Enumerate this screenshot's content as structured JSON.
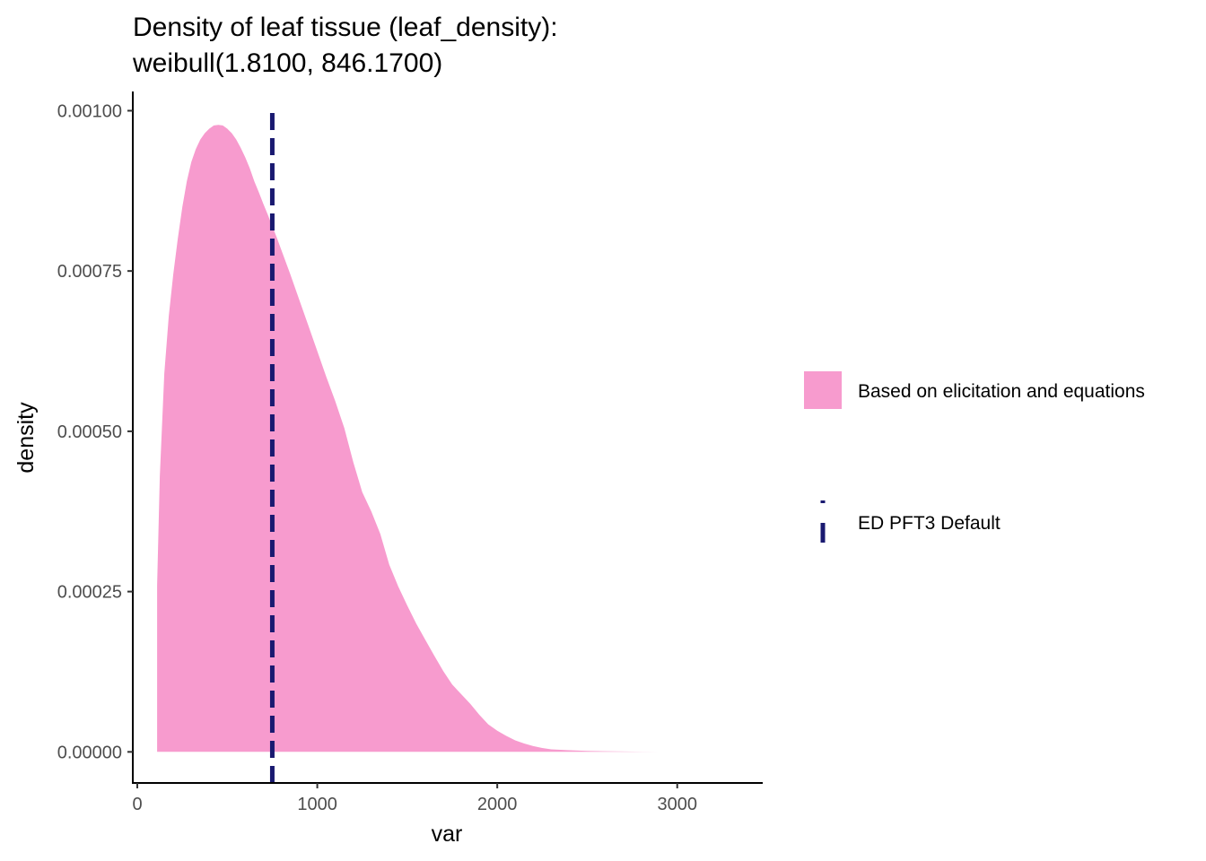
{
  "chart_data": {
    "type": "area",
    "title_line1": "Density of leaf tissue (leaf_density):",
    "title_line2": "weibull(1.8100, 846.1700)",
    "xlabel": "var",
    "ylabel": "density",
    "xlim": [
      -25,
      3475
    ],
    "ylim": [
      -4.85e-05,
      0.00103
    ],
    "x_ticks": [
      {
        "value": 0,
        "label": "0"
      },
      {
        "value": 1000,
        "label": "1000"
      },
      {
        "value": 2000,
        "label": "2000"
      },
      {
        "value": 3000,
        "label": "3000"
      }
    ],
    "y_ticks": [
      {
        "value": 0,
        "label": "0.00000"
      },
      {
        "value": 0.00025,
        "label": "0.00025"
      },
      {
        "value": 0.0005,
        "label": "0.00050"
      },
      {
        "value": 0.00075,
        "label": "0.00075"
      },
      {
        "value": 0.001,
        "label": "0.00100"
      }
    ],
    "grid": false,
    "legend_position": "right",
    "series": [
      {
        "name": "Based on elicitation and equations",
        "kind": "density-area",
        "color": "#f79bce",
        "x": [
          110,
          110,
          125,
          150,
          175,
          200,
          225,
          250,
          275,
          300,
          325,
          350,
          375,
          400,
          425,
          450,
          475,
          500,
          525,
          550,
          575,
          600,
          625,
          650,
          675,
          700,
          725,
          750,
          775,
          800,
          850,
          900,
          950,
          1000,
          1050,
          1100,
          1150,
          1200,
          1250,
          1300,
          1350,
          1400,
          1450,
          1500,
          1550,
          1600,
          1650,
          1700,
          1750,
          1800,
          1850,
          1900,
          1950,
          2000,
          2050,
          2100,
          2150,
          2200,
          2250,
          2300,
          2400,
          2500,
          2600,
          2700,
          2800,
          2900,
          3000
        ],
        "y": [
          0,
          0.00026,
          0.00043,
          0.00059,
          0.00068,
          0.000745,
          0.0008,
          0.00085,
          0.00089,
          0.00092,
          0.00094,
          0.000955,
          0.000965,
          0.000972,
          0.000977,
          0.000978,
          0.000977,
          0.000972,
          0.000965,
          0.000955,
          0.000942,
          0.000927,
          0.00091,
          0.00089,
          0.000873,
          0.000855,
          0.000838,
          0.00082,
          0.000802,
          0.000783,
          0.000745,
          0.000705,
          0.000665,
          0.000625,
          0.000585,
          0.000547,
          0.000505,
          0.000452,
          0.000405,
          0.000375,
          0.00034,
          0.000292,
          0.000258,
          0.000228,
          0.0002,
          0.000175,
          0.00015,
          0.000126,
          0.000105,
          9e-05,
          7.5e-05,
          5.8e-05,
          4.3e-05,
          3.3e-05,
          2.5e-05,
          1.8e-05,
          1.3e-05,
          9e-06,
          6e-06,
          4e-06,
          2.5e-06,
          1.6e-06,
          1e-06,
          6e-07,
          3e-07,
          1e-07,
          0
        ]
      },
      {
        "name": "ED PFT3 Default",
        "kind": "vline",
        "color": "#191970",
        "x": 750,
        "linetype": "dashed"
      }
    ]
  }
}
